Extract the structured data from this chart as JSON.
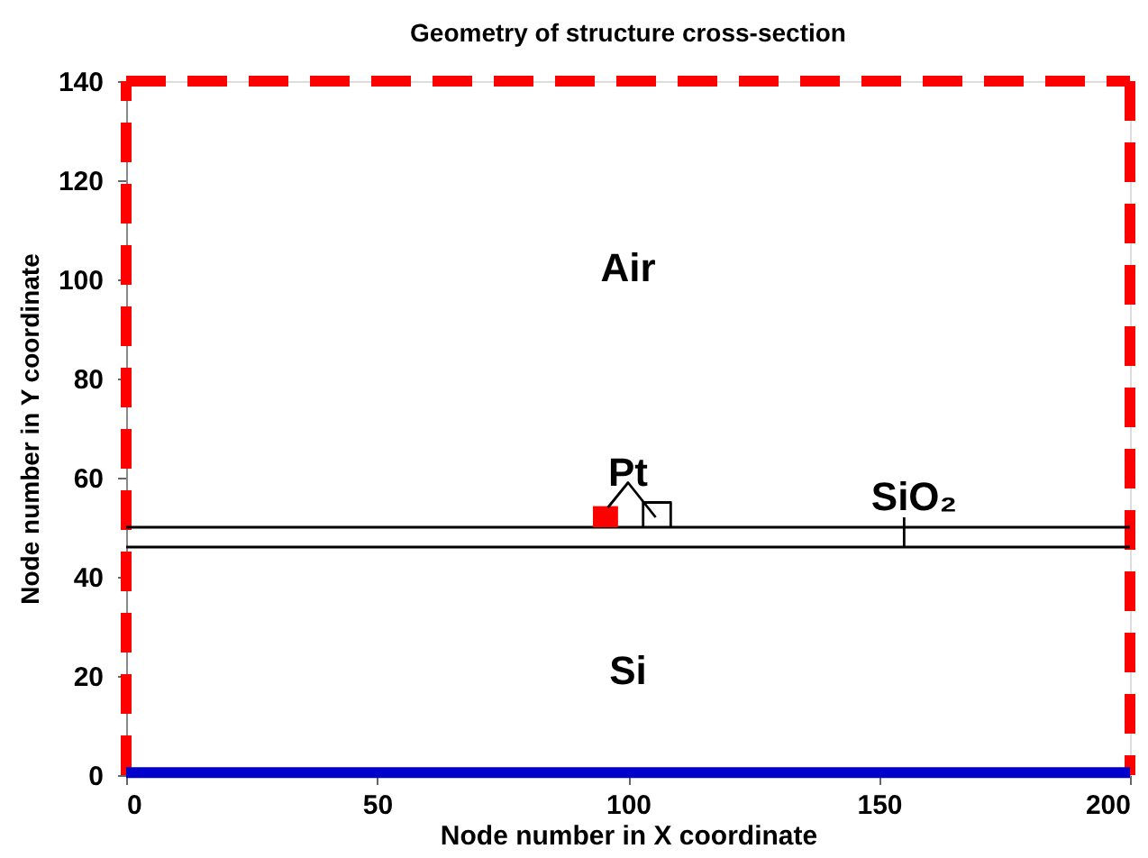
{
  "chart_data": {
    "type": "line",
    "title": "Geometry of structure cross-section",
    "xlabel": "Node number in X coordinate",
    "ylabel": "Node number in Y coordinate",
    "xlim": [
      0,
      200
    ],
    "xticks": [
      0,
      50,
      100,
      150,
      200
    ],
    "ylim": [
      0,
      140
    ],
    "yticks": [
      0,
      20,
      40,
      60,
      80,
      100,
      120,
      140
    ],
    "grid": false,
    "marker": "none",
    "series": [
      {
        "color": "#ff0000",
        "line_style": "dashed",
        "x": [
          0,
          0
        ],
        "values": [
          0,
          140
        ]
      },
      {
        "color": "#ff0000",
        "line_style": "dashed",
        "x": [
          0,
          200
        ],
        "values": [
          140,
          140
        ]
      },
      {
        "color": "#ff0000",
        "line_style": "dashed",
        "x": [
          200,
          200
        ],
        "values": [
          140,
          0
        ]
      },
      {
        "color": "#0000cc",
        "line_style": "solid",
        "x": [
          0,
          200
        ],
        "values": [
          0.5,
          0.5
        ]
      },
      {
        "color": "#000000",
        "line_style": "solid",
        "x": [
          0,
          200
        ],
        "values": [
          50,
          50
        ]
      },
      {
        "color": "#000000",
        "line_style": "solid",
        "x": [
          0,
          200
        ],
        "values": [
          46,
          46
        ]
      },
      {
        "color": "#ff0000",
        "line_style": "solid",
        "x": [
          93,
          98
        ],
        "values": [
          54,
          54
        ],
        "lower": [
          50,
          50
        ],
        "upper": [
          54,
          54
        ]
      },
      {
        "color": "#000000",
        "line_style": "solid",
        "x": [
          103,
          103,
          108.5,
          108.5
        ],
        "values": [
          50,
          55,
          55,
          50
        ]
      },
      {
        "color": "#000000",
        "line_style": "solid",
        "x": [
          96,
          100,
          105.5
        ],
        "values": [
          54,
          59,
          52
        ]
      },
      {
        "color": "#000000",
        "line_style": "solid",
        "x": [
          155,
          155
        ],
        "values": [
          46,
          52
        ]
      }
    ],
    "annotations": [
      "Air",
      "Pt",
      "SiO₂",
      "Si"
    ]
  }
}
